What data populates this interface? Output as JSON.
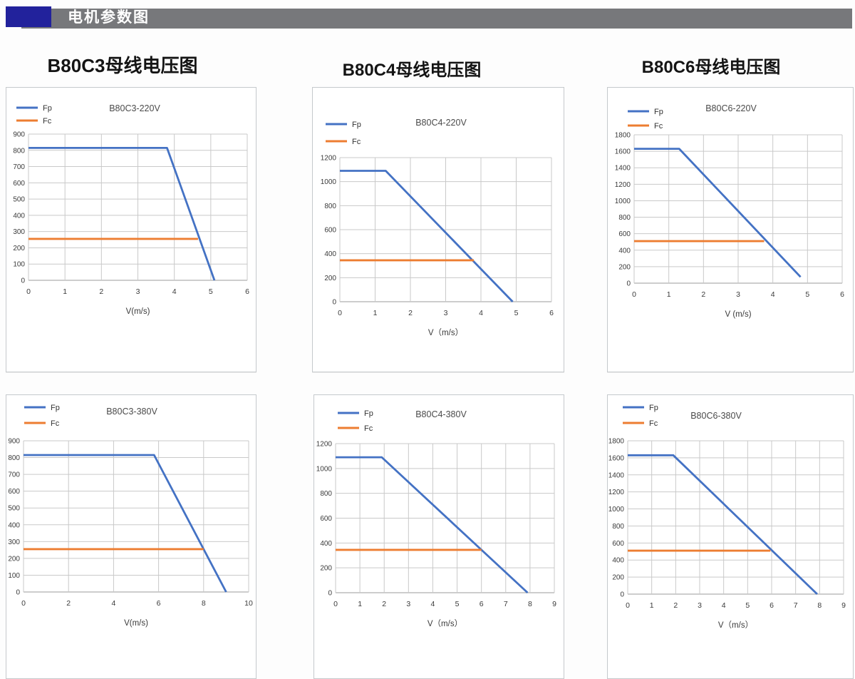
{
  "header": {
    "title": "电机参数图",
    "bar_color": "#77787B",
    "accent_color": "#22229C",
    "text_color": "#FFFFFF"
  },
  "column_headings": [
    "B80C3母线电压图",
    "B80C4母线电压图",
    "B80C6母线电压图"
  ],
  "legend": {
    "fp_label": "Fp",
    "fc_label": "Fc"
  },
  "colors": {
    "fp_line": "#4472C4",
    "fc_line": "#ED7D31",
    "gridline": "#c9c9c9",
    "axis_line": "#9b9b9b",
    "tick_text": "#3a3a3a",
    "title_text": "#4a4a4a"
  },
  "chart_data": [
    {
      "type": "line",
      "title": "B80C3-220V",
      "xlabel": "V(m/s)",
      "xlim": [
        0,
        6
      ],
      "xtick_step": 1,
      "ylim": [
        0,
        900
      ],
      "ytick_step": 100,
      "grid": true,
      "legend_position": "top-left",
      "series": [
        {
          "name": "Fp",
          "color": "#4472C4",
          "points": [
            [
              0,
              815
            ],
            [
              3.8,
              815
            ],
            [
              5.1,
              0
            ]
          ]
        },
        {
          "name": "Fc",
          "color": "#ED7D31",
          "points": [
            [
              0,
              255
            ],
            [
              4.65,
              255
            ]
          ]
        }
      ]
    },
    {
      "type": "line",
      "title": "B80C4-220V",
      "xlabel": "V（m/s）",
      "xlim": [
        0,
        6
      ],
      "xtick_step": 1,
      "ylim": [
        0,
        1200
      ],
      "ytick_step": 200,
      "grid": true,
      "legend_position": "top-left",
      "series": [
        {
          "name": "Fp",
          "color": "#4472C4",
          "points": [
            [
              0,
              1090
            ],
            [
              1.3,
              1090
            ],
            [
              4.9,
              0
            ]
          ]
        },
        {
          "name": "Fc",
          "color": "#ED7D31",
          "points": [
            [
              0,
              345
            ],
            [
              3.8,
              345
            ]
          ]
        }
      ]
    },
    {
      "type": "line",
      "title": "B80C6-220V",
      "xlabel": "V (m/s)",
      "xlim": [
        0,
        6
      ],
      "xtick_step": 1,
      "ylim": [
        0,
        1800
      ],
      "ytick_step": 200,
      "grid": true,
      "legend_position": "top-left",
      "series": [
        {
          "name": "Fp",
          "color": "#4472C4",
          "points": [
            [
              0,
              1630
            ],
            [
              1.3,
              1630
            ],
            [
              4.8,
              75
            ]
          ]
        },
        {
          "name": "Fc",
          "color": "#ED7D31",
          "points": [
            [
              0,
              510
            ],
            [
              3.75,
              510
            ]
          ]
        }
      ]
    },
    {
      "type": "line",
      "title": "B80C3-380V",
      "xlabel": "V(m/s)",
      "xlim": [
        0,
        10
      ],
      "xtick_step": 2,
      "ylim": [
        0,
        900
      ],
      "ytick_step": 100,
      "grid": true,
      "legend_position": "top-left",
      "series": [
        {
          "name": "Fp",
          "color": "#4472C4",
          "points": [
            [
              0,
              815
            ],
            [
              5.8,
              815
            ],
            [
              9,
              0
            ]
          ]
        },
        {
          "name": "Fc",
          "color": "#ED7D31",
          "points": [
            [
              0,
              255
            ],
            [
              8,
              255
            ]
          ]
        }
      ]
    },
    {
      "type": "line",
      "title": "B80C4-380V",
      "xlabel": "V（m/s）",
      "xlim": [
        0,
        9
      ],
      "xtick_step": 1,
      "ylim": [
        0,
        1200
      ],
      "ytick_step": 200,
      "grid": true,
      "legend_position": "top-left",
      "series": [
        {
          "name": "Fp",
          "color": "#4472C4",
          "points": [
            [
              0,
              1090
            ],
            [
              1.9,
              1090
            ],
            [
              7.9,
              0
            ]
          ]
        },
        {
          "name": "Fc",
          "color": "#ED7D31",
          "points": [
            [
              0,
              345
            ],
            [
              6,
              345
            ]
          ]
        }
      ]
    },
    {
      "type": "line",
      "title": "B80C6-380V",
      "xlabel": "V（m/s）",
      "xlim": [
        0,
        9
      ],
      "xtick_step": 1,
      "ylim": [
        0,
        1800
      ],
      "ytick_step": 200,
      "grid": true,
      "legend_position": "top-left",
      "series": [
        {
          "name": "Fp",
          "color": "#4472C4",
          "points": [
            [
              0,
              1630
            ],
            [
              1.9,
              1630
            ],
            [
              7.9,
              0
            ]
          ]
        },
        {
          "name": "Fc",
          "color": "#ED7D31",
          "points": [
            [
              0,
              510
            ],
            [
              5.95,
              510
            ]
          ]
        }
      ]
    }
  ]
}
